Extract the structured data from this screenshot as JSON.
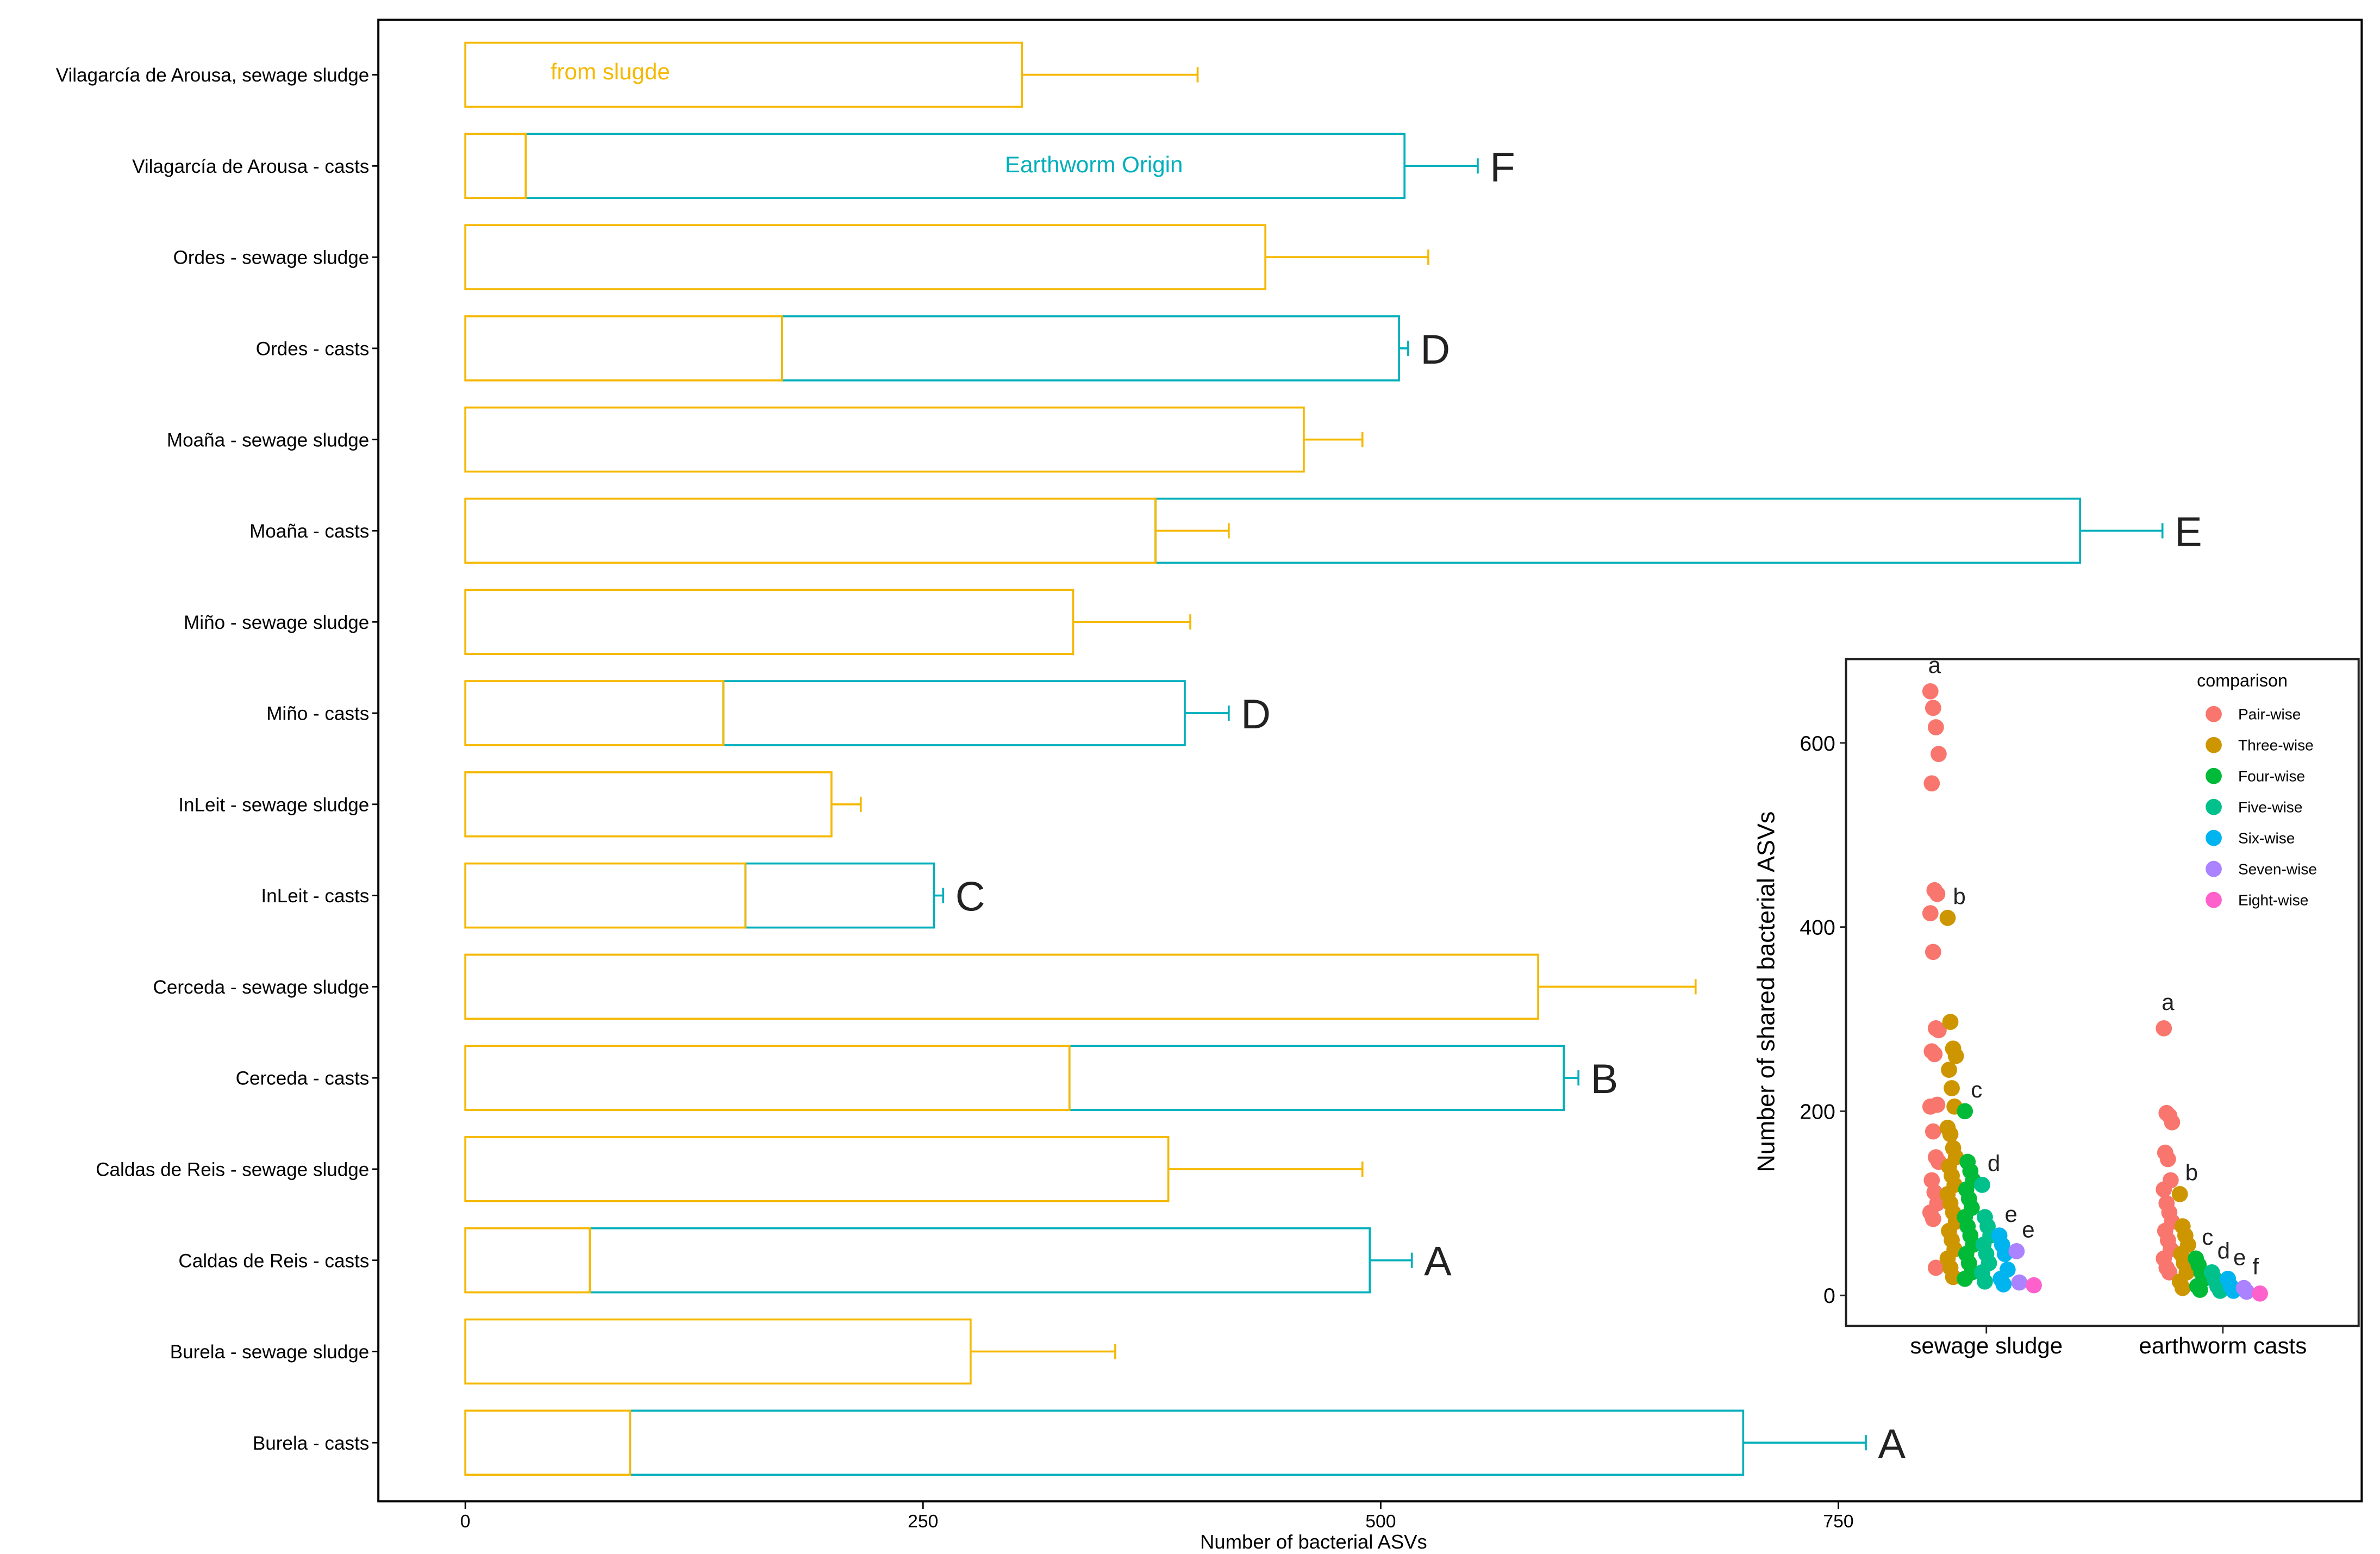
{
  "chart_data": [
    {
      "type": "bar",
      "orientation": "horizontal",
      "xlabel": "Number of bacterial ASVs",
      "xlim": [
        -95,
        1010
      ],
      "xticks": [
        "0",
        "250",
        "500",
        "750"
      ],
      "xtick_values": [
        0,
        250,
        500,
        750
      ],
      "annotations": {
        "sludge_origin": "from slugde",
        "earthworm_origin": "Earthworm Origin"
      },
      "colors": {
        "sludge": "#F5B800",
        "earthworm": "#00AFBB"
      },
      "categories": [
        "Vilagarcía de Arousa, sewage sludge",
        "Vilagarcía de Arousa - casts",
        "Ordes - sewage sludge",
        "Ordes - casts",
        "Moaña - sewage sludge",
        "Moaña - casts",
        "Miño - sewage sludge",
        "Miño - casts",
        "InLeit - sewage sludge",
        "InLeit - casts",
        "Cerceda - sewage sludge",
        "Cerceda - casts",
        "Caldas de Reis - sewage sludge",
        "Caldas de Reis - casts",
        "Burela - sewage sludge",
        "Burela - casts"
      ],
      "sludge_values": [
        304,
        33,
        437,
        173,
        458,
        377,
        332,
        141,
        200,
        153,
        586,
        330,
        384,
        68,
        276,
        90
      ],
      "total_values": [
        null,
        513,
        null,
        510,
        null,
        882,
        null,
        393,
        null,
        256,
        null,
        600,
        null,
        494,
        null,
        698
      ],
      "error_upper": [
        400,
        553,
        526,
        515,
        490,
        927,
        396,
        417,
        216,
        261,
        672,
        608,
        490,
        517,
        355,
        765
      ],
      "sludge_error_upper_in_casts": [
        null,
        null,
        null,
        null,
        null,
        417,
        null,
        null,
        null,
        null,
        null,
        null,
        null,
        null,
        null,
        null
      ],
      "significance_letters": [
        "",
        "F",
        "",
        "D",
        "",
        "E",
        "",
        "D",
        "",
        "C",
        "",
        "B",
        "",
        "A",
        "",
        "A"
      ]
    },
    {
      "type": "scatter",
      "ylabel": "Number of shared bacterial ASVs",
      "ylim": [
        -35,
        690
      ],
      "yticks": [
        "0",
        "200",
        "400",
        "600"
      ],
      "ytick_values": [
        0,
        200,
        400,
        600
      ],
      "categories": [
        "sewage sludge",
        "earthworm casts"
      ],
      "legend_title": "comparison",
      "legend_position": "top-right",
      "series": [
        {
          "name": "Pair-wise",
          "color": "#F8766D",
          "values": [
            [
              656,
              638,
              617,
              588,
              556,
              440,
              436,
              415,
              373,
              290,
              288,
              265,
              262,
              207,
              205,
              178,
              150,
              145,
              125,
              112,
              100,
              90,
              83,
              30
            ],
            [
              290,
              198,
              195,
              188,
              155,
              148,
              125,
              115,
              100,
              90,
              80,
              70,
              60,
              50,
              40,
              30,
              25
            ]
          ],
          "letters": [
            "a",
            "a"
          ]
        },
        {
          "name": "Three-wise",
          "color": "#CD9600",
          "values": [
            [
              410,
              297,
              268,
              260,
              245,
              225,
              205,
              182,
              175,
              160,
              150,
              140,
              130,
              120,
              110,
              100,
              90,
              80,
              70,
              60,
              50,
              40,
              30,
              20
            ],
            [
              110,
              75,
              65,
              55,
              45,
              35,
              25,
              15,
              8
            ]
          ],
          "letters": [
            "b",
            "b"
          ]
        },
        {
          "name": "Four-wise",
          "color": "#00BA38",
          "values": [
            [
              200,
              145,
              135,
              125,
              115,
              105,
              95,
              85,
              75,
              65,
              55,
              45,
              35,
              25,
              18
            ],
            [
              40,
              33,
              25,
              18,
              10,
              6
            ]
          ],
          "letters": [
            "c",
            "c"
          ]
        },
        {
          "name": "Five-wise",
          "color": "#00C08B",
          "values": [
            [
              120,
              85,
              75,
              65,
              55,
              45,
              35,
              25,
              15
            ],
            [
              25,
              18,
              10,
              5
            ]
          ],
          "letters": [
            "d",
            "d"
          ]
        },
        {
          "name": "Six-wise",
          "color": "#00B4EF",
          "values": [
            [
              65,
              55,
              45,
              28,
              18,
              12
            ],
            [
              18,
              10,
              5
            ]
          ],
          "letters": [
            "e",
            "e"
          ]
        },
        {
          "name": "Seven-wise",
          "color": "#AB82FF",
          "values": [
            [
              48,
              14
            ],
            [
              8,
              4
            ]
          ],
          "letters": [
            "e",
            "f"
          ]
        },
        {
          "name": "Eight-wise",
          "color": "#FF61CC",
          "values": [
            [
              11
            ],
            [
              2
            ]
          ],
          "letters": [
            "",
            ""
          ]
        }
      ]
    }
  ]
}
